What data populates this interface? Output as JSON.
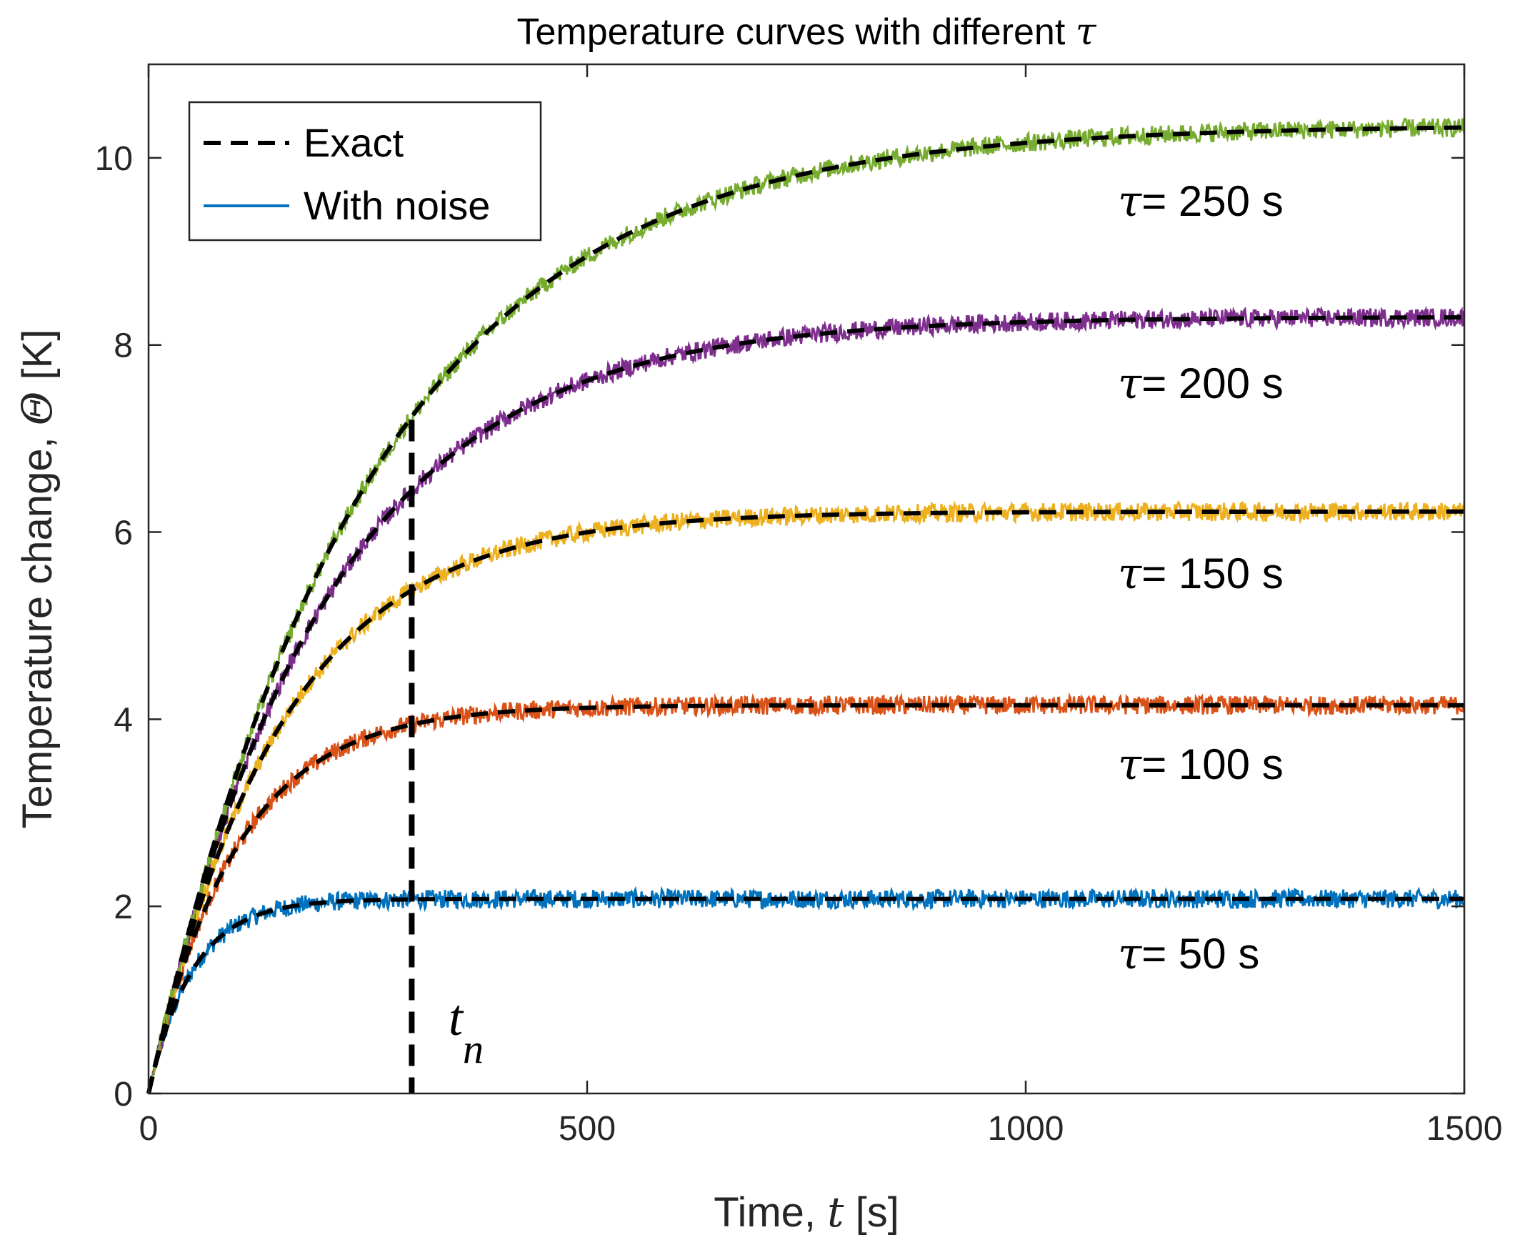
{
  "chart_data": {
    "type": "line",
    "title": "Temperature curves with different",
    "title_symbol": "τ",
    "xlabel": "Time, ",
    "xlabel_symbol": "t",
    "xlabel_unit": " [s]",
    "ylabel": "Temperature change, ",
    "ylabel_symbol": "Θ",
    "ylabel_unit": " [K]",
    "xlim": [
      0,
      1500
    ],
    "ylim": [
      0,
      11
    ],
    "xticks": [
      0,
      500,
      1000,
      1500
    ],
    "yticks": [
      0,
      2,
      4,
      6,
      8,
      10
    ],
    "grid": false,
    "legend": {
      "placement": "top-left",
      "entries": [
        {
          "label": "Exact",
          "style": "dashed",
          "color": "#000000"
        },
        {
          "label": "With noise",
          "style": "solid",
          "color": "#0072BD"
        }
      ]
    },
    "series": [
      {
        "name": "τ = 50 s",
        "tau_label": "τ",
        "value_label": "= 50 s",
        "tau": 50,
        "steady_state": 2.08,
        "color": "#0072BD"
      },
      {
        "name": "τ = 100 s",
        "tau_label": "τ",
        "value_label": "= 100 s",
        "tau": 100,
        "steady_state": 4.15,
        "color": "#D95319"
      },
      {
        "name": "τ = 150 s",
        "tau_label": "τ",
        "value_label": "= 150 s",
        "tau": 150,
        "steady_state": 6.22,
        "color": "#EDB120"
      },
      {
        "name": "τ = 200 s",
        "tau_label": "τ",
        "value_label": "= 200 s",
        "tau": 200,
        "steady_state": 8.3,
        "color": "#7E2F8E"
      },
      {
        "name": "τ = 250 s",
        "tau_label": "τ",
        "value_label": "= 250 s",
        "tau": 250,
        "steady_state": 10.35,
        "color": "#77AC30"
      }
    ],
    "noise_amplitude": 0.1,
    "annotation": {
      "label": "t",
      "subscript": "n",
      "x": 300
    }
  }
}
